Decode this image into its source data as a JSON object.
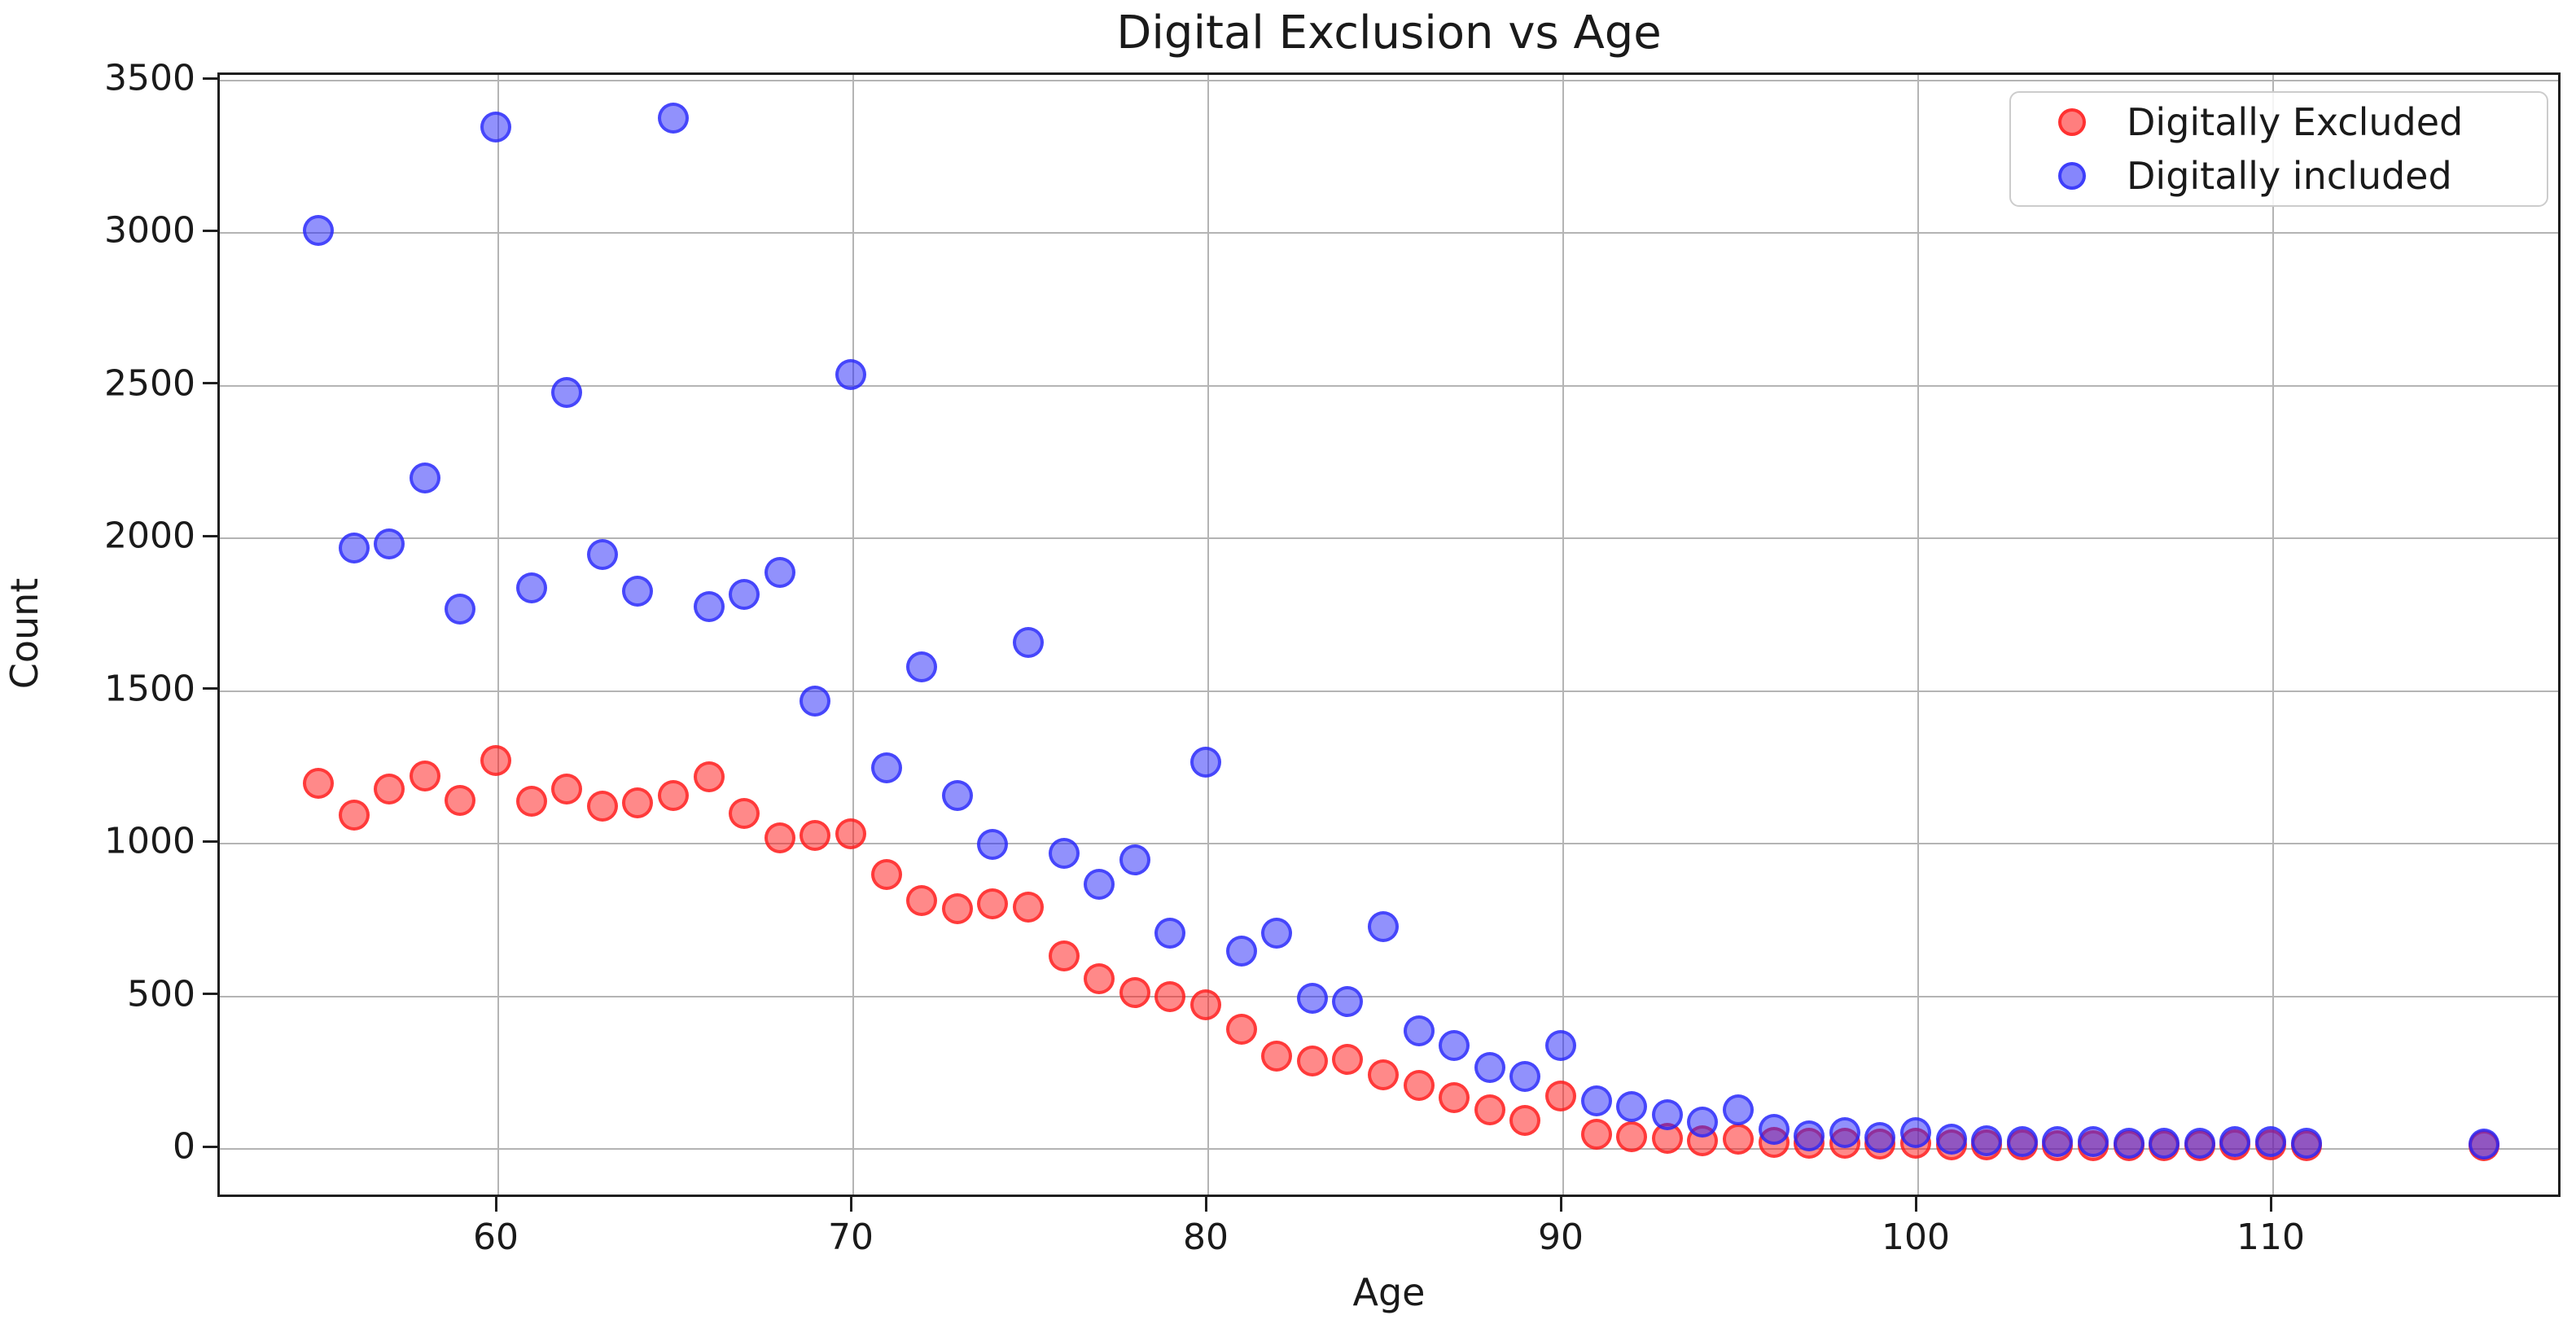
{
  "figure": {
    "background": "#ffffff",
    "grid_color": "#b4b4b4",
    "spine_color": "#1f1f1f",
    "text_color": "#1a1a1a"
  },
  "chart_data": {
    "type": "scatter",
    "title": "Digital Exclusion vs Age",
    "xlabel": "Age",
    "ylabel": "Count",
    "grid": true,
    "legend_position": "upper right",
    "xlim": [
      52,
      118
    ],
    "ylim": [
      -160,
      3520
    ],
    "x_ticks": [
      60,
      70,
      80,
      90,
      100,
      110
    ],
    "y_ticks": [
      0,
      500,
      1000,
      1500,
      2000,
      2500,
      3000,
      3500
    ],
    "x": [
      55,
      56,
      57,
      58,
      59,
      60,
      61,
      62,
      63,
      64,
      65,
      66,
      67,
      68,
      69,
      70,
      71,
      72,
      73,
      74,
      75,
      76,
      77,
      78,
      79,
      80,
      81,
      82,
      83,
      84,
      85,
      86,
      87,
      88,
      89,
      90,
      91,
      92,
      93,
      94,
      95,
      96,
      97,
      98,
      99,
      100,
      101,
      102,
      103,
      104,
      105,
      106,
      107,
      108,
      109,
      110,
      111,
      116
    ],
    "series": [
      {
        "name": "Digitally Excluded",
        "color": "#ff1414",
        "alpha": 0.6,
        "values": [
          1190,
          1085,
          1170,
          1215,
          1135,
          1265,
          1130,
          1170,
          1115,
          1125,
          1150,
          1210,
          1090,
          1010,
          1020,
          1025,
          890,
          805,
          780,
          795,
          785,
          625,
          550,
          505,
          490,
          465,
          385,
          295,
          280,
          285,
          235,
          200,
          160,
          120,
          85,
          165,
          40,
          32,
          26,
          20,
          24,
          14,
          10,
          10,
          8,
          10,
          6,
          5,
          5,
          4,
          4,
          3,
          3,
          3,
          5,
          5,
          3,
          2
        ]
      },
      {
        "name": "Digitally included",
        "color": "#2323fa",
        "alpha": 0.6,
        "values": [
          3000,
          1960,
          1975,
          2190,
          1760,
          3340,
          1830,
          2470,
          1940,
          1820,
          3370,
          1770,
          1810,
          1880,
          1460,
          2530,
          1240,
          1570,
          1150,
          990,
          1650,
          960,
          860,
          940,
          700,
          1260,
          640,
          700,
          485,
          475,
          720,
          380,
          330,
          260,
          230,
          330,
          150,
          130,
          105,
          80,
          120,
          55,
          35,
          45,
          30,
          45,
          25,
          18,
          15,
          15,
          15,
          12,
          12,
          12,
          15,
          15,
          12,
          8
        ]
      }
    ]
  }
}
